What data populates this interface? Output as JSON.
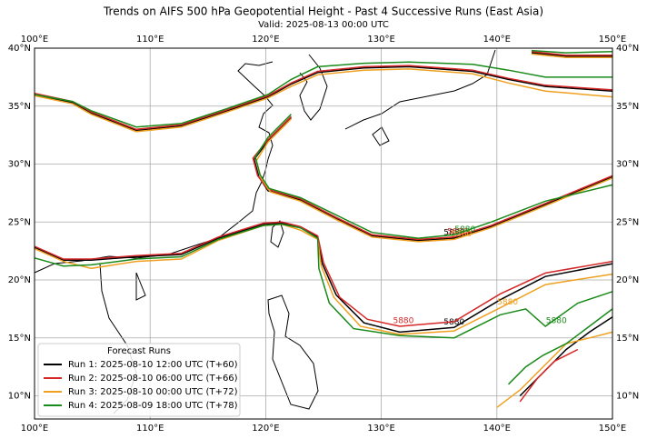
{
  "chart_data": {
    "type": "map",
    "title": "Trends on AIFS 500 hPa Geopotential Height - Past 4 Successive Runs (East Asia)",
    "subtitle": "Valid: 2025-08-13 00:00 UTC",
    "contour_level": 5880,
    "legend_title": "Forecast Runs",
    "legend": "lower left",
    "grid": true,
    "xlim": [
      100,
      150
    ],
    "ylim": [
      8,
      40
    ],
    "xticks": [
      {
        "value": 100,
        "label": "100°E"
      },
      {
        "value": 110,
        "label": "110°E"
      },
      {
        "value": 120,
        "label": "120°E"
      },
      {
        "value": 130,
        "label": "130°E"
      },
      {
        "value": 140,
        "label": "140°E"
      },
      {
        "value": 150,
        "label": "150°E"
      }
    ],
    "yticks": [
      {
        "value": 10,
        "label": "10°N"
      },
      {
        "value": 15,
        "label": "15°N"
      },
      {
        "value": 20,
        "label": "20°N"
      },
      {
        "value": 25,
        "label": "25°N"
      },
      {
        "value": 30,
        "label": "30°N"
      },
      {
        "value": 35,
        "label": "35°N"
      },
      {
        "value": 40,
        "label": "40°N"
      }
    ],
    "series": [
      {
        "name": "Run 1: 2025-08-10 12:00 UTC (T+60)",
        "color": "#000000",
        "x": [
          100,
          103.3,
          104.9,
          108.8,
          112.7,
          116.7,
          120.2,
          122.2,
          124.5,
          128.5,
          132.4,
          137.9,
          141,
          144.2,
          150,
          null,
          122.2,
          120.2,
          119.0,
          119.4,
          120.2,
          123.0,
          126.1,
          129.2,
          133.2,
          136.3,
          139.5,
          144.2,
          150,
          null,
          100,
          102.5,
          104.9,
          108.8,
          112.7,
          115.9,
          119.8,
          121.4,
          123,
          124.5,
          124.9,
          126.1,
          128.5,
          131.6,
          136.3,
          140.3,
          144.2,
          150,
          null,
          143,
          146,
          150,
          null,
          142,
          144,
          146,
          148,
          150
        ],
        "values": [
          36.0,
          35.3,
          34.4,
          32.9,
          33.3,
          34.6,
          35.8,
          36.9,
          37.9,
          38.3,
          38.4,
          38.0,
          37.3,
          36.7,
          36.3,
          null,
          34.0,
          32.0,
          30.4,
          28.9,
          27.7,
          26.9,
          25.3,
          23.8,
          23.4,
          23.6,
          24.6,
          26.5,
          28.9,
          null,
          22.8,
          21.7,
          21.7,
          22.0,
          22.2,
          23.6,
          24.8,
          24.9,
          24.5,
          23.7,
          21.4,
          18.7,
          16.3,
          15.5,
          15.9,
          18.3,
          20.3,
          21.4,
          null,
          39.6,
          39.3,
          39.3,
          null,
          10.0,
          12.0,
          14.0,
          15.5,
          16.8
        ]
      },
      {
        "name": "Run 2: 2025-08-10 06:00 UTC (T+66)",
        "color": "#d62728",
        "x": [
          100,
          103.3,
          104.9,
          108.8,
          112.7,
          116.7,
          120.2,
          122.2,
          124.5,
          128.5,
          132.4,
          137.9,
          141,
          144.2,
          150,
          null,
          122.2,
          120.2,
          118.9,
          119.3,
          120.2,
          123.0,
          126.1,
          129.2,
          133.2,
          136.3,
          139.5,
          144.2,
          150,
          null,
          100,
          102.5,
          104.9,
          108.8,
          112.7,
          115.9,
          119.8,
          121.4,
          123,
          124.5,
          125.0,
          126.4,
          128.8,
          131.6,
          136.3,
          140.3,
          144.2,
          150,
          null,
          143,
          146,
          150,
          null,
          142,
          143.5,
          145,
          147
        ],
        "values": [
          36.1,
          35.4,
          34.5,
          33.0,
          33.4,
          34.7,
          35.9,
          37.0,
          38.0,
          38.4,
          38.5,
          38.1,
          37.4,
          36.8,
          36.4,
          null,
          34.1,
          32.1,
          30.5,
          29.0,
          27.8,
          27.0,
          25.4,
          23.9,
          23.5,
          23.7,
          24.7,
          26.6,
          29.0,
          null,
          22.9,
          21.8,
          21.8,
          22.1,
          22.3,
          23.7,
          24.9,
          25.0,
          24.6,
          23.8,
          21.5,
          18.5,
          16.6,
          16.0,
          16.4,
          18.8,
          20.6,
          21.6,
          null,
          39.7,
          39.4,
          39.4,
          null,
          9.5,
          11.5,
          13.0,
          14.0
        ]
      },
      {
        "name": "Run 3: 2025-08-10 00:00 UTC (T+72)",
        "color": "#f0a020",
        "x": [
          100,
          103.3,
          104.9,
          108.8,
          112.7,
          116.7,
          120.2,
          122.2,
          124.5,
          128.5,
          132.4,
          137.9,
          141,
          144.2,
          150,
          null,
          122.2,
          120.2,
          119.2,
          119.6,
          120.4,
          123.0,
          126.1,
          129.2,
          133.2,
          136.3,
          139.5,
          144.2,
          150,
          null,
          100,
          102.5,
          104.9,
          108.8,
          112.7,
          115.9,
          119.8,
          121.4,
          123,
          124.5,
          124.8,
          125.9,
          128.2,
          131.6,
          136.3,
          140.3,
          144.2,
          150,
          null,
          143,
          146,
          150,
          null,
          140,
          142,
          144,
          146,
          148,
          150
        ],
        "values": [
          35.9,
          35.2,
          34.3,
          32.8,
          33.2,
          34.5,
          35.7,
          36.7,
          37.7,
          38.1,
          38.2,
          37.8,
          37.0,
          36.3,
          35.8,
          null,
          33.9,
          31.9,
          30.3,
          28.8,
          27.6,
          26.8,
          25.2,
          23.7,
          23.3,
          23.5,
          24.5,
          26.4,
          28.8,
          null,
          22.7,
          21.6,
          21.0,
          21.6,
          21.8,
          23.4,
          24.7,
          24.8,
          24.3,
          23.5,
          21.2,
          18.5,
          16.0,
          15.3,
          15.6,
          17.6,
          19.6,
          20.5,
          null,
          39.5,
          39.2,
          39.2,
          null,
          9.0,
          10.5,
          12.5,
          14.5,
          15.0,
          15.5
        ]
      },
      {
        "name": "Run 4: 2025-08-09 18:00 UTC (T+78)",
        "color": "#1a8a1a",
        "x": [
          100,
          103.3,
          104.9,
          108.8,
          112.7,
          116.7,
          120.2,
          122.2,
          124.5,
          128.5,
          132.4,
          137.9,
          141,
          144.2,
          150,
          null,
          122.2,
          120.2,
          119.1,
          119.5,
          120.3,
          123.0,
          126.1,
          129.2,
          133.2,
          136.3,
          139.5,
          144.2,
          150,
          null,
          100,
          102.5,
          104.9,
          108.8,
          112.7,
          115.9,
          119.8,
          121.4,
          123,
          124.5,
          124.6,
          125.5,
          127.6,
          131.6,
          136.3,
          140.3,
          142.5,
          144.2,
          147,
          150,
          null,
          143,
          146,
          150,
          null,
          141,
          142.5,
          144,
          146,
          148,
          150
        ],
        "values": [
          36.0,
          35.4,
          34.6,
          33.2,
          33.5,
          34.8,
          36.0,
          37.3,
          38.4,
          38.7,
          38.8,
          38.6,
          38.1,
          37.5,
          37.5,
          null,
          34.3,
          32.3,
          30.6,
          29.1,
          27.9,
          27.1,
          25.6,
          24.1,
          23.6,
          23.9,
          25.0,
          26.8,
          28.2,
          null,
          21.9,
          21.2,
          21.3,
          21.8,
          22.0,
          23.5,
          24.7,
          24.8,
          24.5,
          23.6,
          21.0,
          18.0,
          15.8,
          15.2,
          15.0,
          17.0,
          17.5,
          16.0,
          18.0,
          19.0,
          null,
          39.8,
          39.6,
          39.7,
          null,
          11.0,
          12.5,
          13.5,
          14.5,
          16.0,
          17.5
        ]
      }
    ]
  }
}
